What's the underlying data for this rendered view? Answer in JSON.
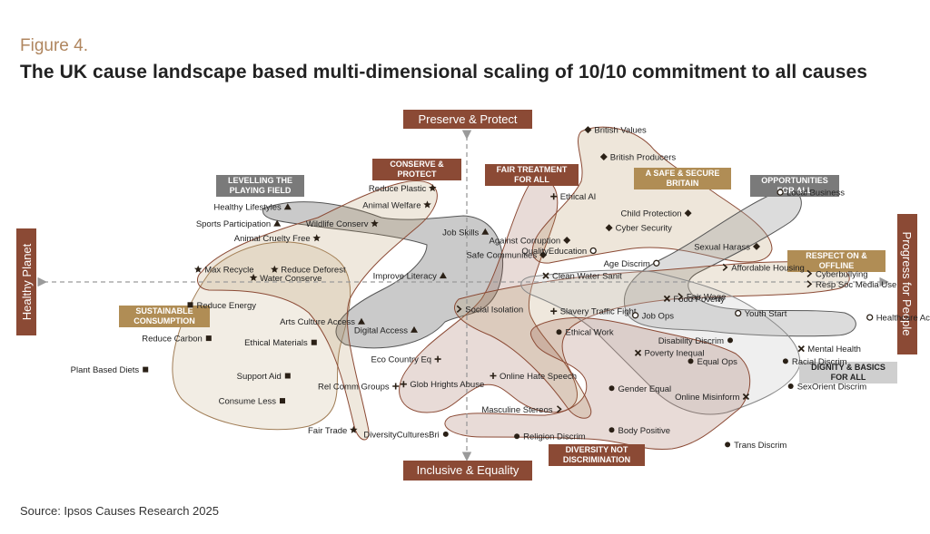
{
  "figure_label": "Figure 4.",
  "title": "The UK cause landscape based multi-dimensional scaling of 10/10 commitment to all causes",
  "source": "Source: Ipsos Causes Research 2025",
  "colors": {
    "brown": "#8b4a35",
    "gold": "#b08d55",
    "grey": "#7a7a7a",
    "slate": "#6e6e6e",
    "axis": "#9a9a9a"
  },
  "chart_data": {
    "type": "scatter",
    "title": "The UK cause landscape based multi-dimensional scaling of 10/10 commitment to all causes",
    "xlim": [
      -1,
      1
    ],
    "ylim": [
      -1,
      1
    ],
    "axes": {
      "top": "Preserve & Protect",
      "bottom": "Inclusive & Equality",
      "left": "Healthy Planet",
      "right": "Progress for People"
    },
    "clusters": [
      {
        "name": "LEVELLING THE PLAYING FIELD",
        "marker": "triangle",
        "color": "grey",
        "points": [
          {
            "label": "Healthy Lifestyles",
            "x": -0.68,
            "y": 0.36
          },
          {
            "label": "Sports Participation",
            "x": -0.72,
            "y": 0.28
          },
          {
            "label": "Job Skills",
            "x": 0.07,
            "y": 0.24
          },
          {
            "label": "Improve Literacy",
            "x": -0.09,
            "y": 0.03
          },
          {
            "label": "Arts Culture Access",
            "x": -0.4,
            "y": -0.19
          },
          {
            "label": "Digital Access",
            "x": -0.2,
            "y": -0.23
          }
        ]
      },
      {
        "name": "CONSERVE & PROTECT",
        "marker": "star",
        "color": "brown",
        "points": [
          {
            "label": "Reduce Plastic",
            "x": -0.13,
            "y": 0.45
          },
          {
            "label": "Animal Welfare",
            "x": -0.15,
            "y": 0.37
          },
          {
            "label": "Wildlife Conserv",
            "x": -0.35,
            "y": 0.28
          },
          {
            "label": "Animal Cruelty Free",
            "x": -0.57,
            "y": 0.21
          },
          {
            "label": "Max Recycle",
            "x": -1.02,
            "y": 0.06
          },
          {
            "label": "Reduce Deforest",
            "x": -0.73,
            "y": 0.06
          },
          {
            "label": "Water Conserve",
            "x": -0.81,
            "y": 0.02
          },
          {
            "label": "Fair Trade",
            "x": -0.43,
            "y": -0.71
          }
        ]
      },
      {
        "name": "SUSTAINABLE CONSUMPTION",
        "marker": "square",
        "color": "gold",
        "points": [
          {
            "label": "Reduce Energy",
            "x": -1.05,
            "y": -0.11
          },
          {
            "label": "Reduce Carbon",
            "x": -0.98,
            "y": -0.27
          },
          {
            "label": "Ethical Materials",
            "x": -0.58,
            "y": -0.29
          },
          {
            "label": "Plant Based Diets",
            "x": -1.22,
            "y": -0.42
          },
          {
            "label": "Support Aid",
            "x": -0.68,
            "y": -0.45
          },
          {
            "label": "Consume Less",
            "x": -0.7,
            "y": -0.57
          }
        ]
      },
      {
        "name": "FAIR TREATMENT FOR ALL",
        "marker": "plus",
        "color": "brown",
        "points": [
          {
            "label": "Ethical AI",
            "x": 0.33,
            "y": 0.41
          },
          {
            "label": "Slavery Traffic Fight",
            "x": 0.33,
            "y": -0.14
          },
          {
            "label": "Eco Country Eq",
            "x": -0.11,
            "y": -0.37
          },
          {
            "label": "Online Hate Speech",
            "x": 0.1,
            "y": -0.45
          },
          {
            "label": "Glob Hrights Abuse",
            "x": -0.24,
            "y": -0.49
          },
          {
            "label": "Rel Comm Groups",
            "x": -0.27,
            "y": -0.5
          }
        ]
      },
      {
        "name": "A SAFE & SECURE BRITAIN",
        "marker": "diamond",
        "color": "gold",
        "points": [
          {
            "label": "British Values",
            "x": 0.46,
            "y": 0.73
          },
          {
            "label": "British Producers",
            "x": 0.52,
            "y": 0.6
          },
          {
            "label": "Child Protection",
            "x": 0.84,
            "y": 0.33
          },
          {
            "label": "Cyber Security",
            "x": 0.54,
            "y": 0.26
          },
          {
            "label": "Against Corruption",
            "x": 0.38,
            "y": 0.2
          },
          {
            "label": "Sexual Harass",
            "x": 1.1,
            "y": 0.17
          },
          {
            "label": "Safe Communities",
            "x": 0.29,
            "y": 0.13
          }
        ]
      },
      {
        "name": "OPPORTUNITIES FOR ALL",
        "marker": "circle",
        "color": "slate",
        "points": [
          {
            "label": "Local Business",
            "x": 1.19,
            "y": 0.43
          },
          {
            "label": "QualityEducation",
            "x": 0.48,
            "y": 0.15
          },
          {
            "label": "Age Discrim",
            "x": 0.72,
            "y": 0.09
          },
          {
            "label": "Job Ops",
            "x": 0.64,
            "y": -0.16
          },
          {
            "label": "Youth Start",
            "x": 1.03,
            "y": -0.15
          },
          {
            "label": "Healthcare Access",
            "x": 1.53,
            "y": -0.17
          }
        ]
      },
      {
        "name": "RESPECT ON & OFFLINE",
        "marker": "chevron",
        "color": "gold",
        "points": [
          {
            "label": "Affordable Housing",
            "x": 0.98,
            "y": 0.07
          },
          {
            "label": "Cyberbullying",
            "x": 1.3,
            "y": 0.04
          },
          {
            "label": "Resp Soc Media Use",
            "x": 1.3,
            "y": -0.01
          },
          {
            "label": "Fair Wage",
            "x": 0.81,
            "y": -0.07
          },
          {
            "label": "Social Isolation",
            "x": -0.03,
            "y": -0.13
          },
          {
            "label": "Masculine Stereos",
            "x": 0.35,
            "y": -0.61
          }
        ]
      },
      {
        "name": "DIGNITY & BASICS FOR ALL",
        "marker": "cross",
        "color": "grey",
        "points": [
          {
            "label": "Clean Water Sanit",
            "x": 0.3,
            "y": 0.03
          },
          {
            "label": "Food Poverty",
            "x": 0.76,
            "y": -0.08
          },
          {
            "label": "Mental Health",
            "x": 1.27,
            "y": -0.32
          },
          {
            "label": "Poverty Inequal",
            "x": 0.65,
            "y": -0.34
          },
          {
            "label": "Online Misinform",
            "x": 1.06,
            "y": -0.55
          }
        ]
      },
      {
        "name": "DIVERSITY NOT DISCRIMINATION",
        "marker": "dot",
        "color": "brown",
        "points": [
          {
            "label": "Ethical Work",
            "x": 0.35,
            "y": -0.24
          },
          {
            "label": "Disability Discrim",
            "x": 1.0,
            "y": -0.28
          },
          {
            "label": "Equal Ops",
            "x": 0.85,
            "y": -0.38
          },
          {
            "label": "Racial Discrim",
            "x": 1.21,
            "y": -0.38
          },
          {
            "label": "Gender Equal",
            "x": 0.55,
            "y": -0.51
          },
          {
            "label": "SexOrient Discrim",
            "x": 1.23,
            "y": -0.5
          },
          {
            "label": "Body Positive",
            "x": 0.55,
            "y": -0.71
          },
          {
            "label": "DiversityCulturesBri",
            "x": -0.08,
            "y": -0.73
          },
          {
            "label": "Religion Discrim",
            "x": 0.19,
            "y": -0.74
          },
          {
            "label": "Trans Discrim",
            "x": 0.99,
            "y": -0.78
          }
        ]
      }
    ]
  }
}
